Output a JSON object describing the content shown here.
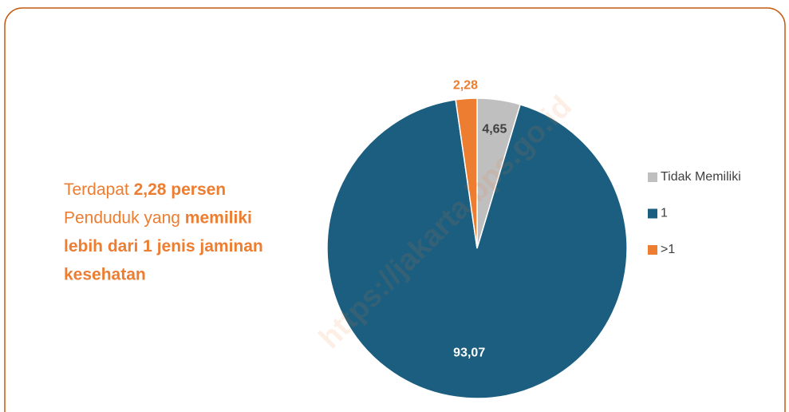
{
  "chart_data": {
    "type": "pie",
    "categories": [
      "Tidak Memiliki",
      "1",
      ">1"
    ],
    "values": [
      4.65,
      93.07,
      2.28
    ],
    "value_labels": [
      "4,65",
      "93,07",
      "2,28"
    ],
    "colors": [
      "#bfbfbf",
      "#1b5e80",
      "#ed7d31"
    ],
    "label_colors": [
      "#404040",
      "#ffffff",
      "#ed7d31"
    ],
    "legend": "right",
    "annotation": [
      [
        {
          "text": "Terdapat ",
          "bold": false
        },
        {
          "text": "2,28 persen",
          "bold": true
        }
      ],
      [
        {
          "text": "Penduduk yang ",
          "bold": false
        },
        {
          "text": "memiliki",
          "bold": true
        }
      ],
      [
        {
          "text": "lebih dari 1 jenis jaminan",
          "bold": true
        }
      ],
      [
        {
          "text": "kesehatan",
          "bold": true
        }
      ]
    ],
    "watermark": "https://jakarta.bps.go.id"
  }
}
